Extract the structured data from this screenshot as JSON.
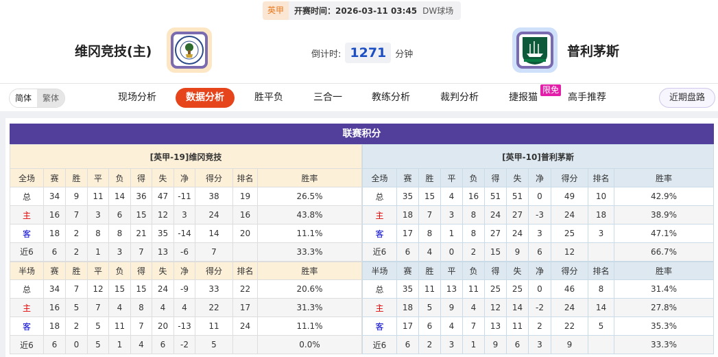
{
  "match": {
    "league": "英甲",
    "kickoff": "开赛时间：2026-03-11 03:45",
    "venue": "DW球场"
  },
  "home": {
    "name": "维冈竞技(主)",
    "logo_text": "WIGAN ATHLETIC"
  },
  "away": {
    "name": "普利茅斯"
  },
  "countdown": {
    "label": "倒计时:",
    "value": "1271",
    "unit": "分钟"
  },
  "lang": {
    "simplified": "简体",
    "traditional": "繁体"
  },
  "tabs": [
    {
      "label": "现场分析"
    },
    {
      "label": "数据分析",
      "active": true
    },
    {
      "label": "胜平负"
    },
    {
      "label": "三合一"
    },
    {
      "label": "教练分析"
    },
    {
      "label": "裁判分析"
    },
    {
      "label": "捷报猫",
      "badge": "限免"
    },
    {
      "label": "高手推荐"
    }
  ],
  "recent_button": "近期盘路",
  "section_title": "联赛积分",
  "colors": {
    "accent": "#e6441a",
    "header": "#523f9c",
    "home_label": "#e00000",
    "away_label": "#0000d0"
  },
  "columns": [
    "赛",
    "胜",
    "平",
    "负",
    "得",
    "失",
    "净",
    "得分",
    "排名",
    "胜率"
  ],
  "tables": [
    {
      "title": "[英甲-19]维冈竞技",
      "full": {
        "label": "全场",
        "rows": [
          [
            "总",
            "34",
            "9",
            "11",
            "14",
            "36",
            "47",
            "-11",
            "38",
            "19",
            "26.5%"
          ],
          [
            "主",
            "16",
            "7",
            "3",
            "6",
            "15",
            "12",
            "3",
            "24",
            "16",
            "43.8%"
          ],
          [
            "客",
            "18",
            "2",
            "8",
            "8",
            "21",
            "35",
            "-14",
            "14",
            "20",
            "11.1%"
          ],
          [
            "近6",
            "6",
            "2",
            "1",
            "3",
            "7",
            "13",
            "-6",
            "7",
            "",
            "33.3%"
          ]
        ]
      },
      "half": {
        "label": "半场",
        "rows": [
          [
            "总",
            "34",
            "7",
            "12",
            "15",
            "15",
            "24",
            "-9",
            "33",
            "22",
            "20.6%"
          ],
          [
            "主",
            "16",
            "5",
            "7",
            "4",
            "8",
            "4",
            "4",
            "22",
            "17",
            "31.3%"
          ],
          [
            "客",
            "18",
            "2",
            "5",
            "11",
            "7",
            "20",
            "-13",
            "11",
            "24",
            "11.1%"
          ],
          [
            "近6",
            "6",
            "0",
            "5",
            "1",
            "4",
            "6",
            "-2",
            "5",
            "",
            "0.0%"
          ]
        ]
      }
    },
    {
      "title": "[英甲-10]普利茅斯",
      "full": {
        "label": "全场",
        "rows": [
          [
            "总",
            "35",
            "15",
            "4",
            "16",
            "51",
            "51",
            "0",
            "49",
            "10",
            "42.9%"
          ],
          [
            "主",
            "18",
            "7",
            "3",
            "8",
            "24",
            "27",
            "-3",
            "24",
            "18",
            "38.9%"
          ],
          [
            "客",
            "17",
            "8",
            "1",
            "8",
            "27",
            "24",
            "3",
            "25",
            "3",
            "47.1%"
          ],
          [
            "近6",
            "6",
            "4",
            "0",
            "2",
            "15",
            "9",
            "6",
            "12",
            "",
            "66.7%"
          ]
        ]
      },
      "half": {
        "label": "半场",
        "rows": [
          [
            "总",
            "35",
            "11",
            "13",
            "11",
            "25",
            "25",
            "0",
            "46",
            "8",
            "31.4%"
          ],
          [
            "主",
            "18",
            "5",
            "9",
            "4",
            "12",
            "14",
            "-2",
            "24",
            "14",
            "27.8%"
          ],
          [
            "客",
            "17",
            "6",
            "4",
            "7",
            "13",
            "11",
            "2",
            "22",
            "5",
            "35.3%"
          ],
          [
            "近6",
            "6",
            "2",
            "3",
            "1",
            "9",
            "6",
            "3",
            "9",
            "",
            "33.3%"
          ]
        ]
      }
    }
  ]
}
